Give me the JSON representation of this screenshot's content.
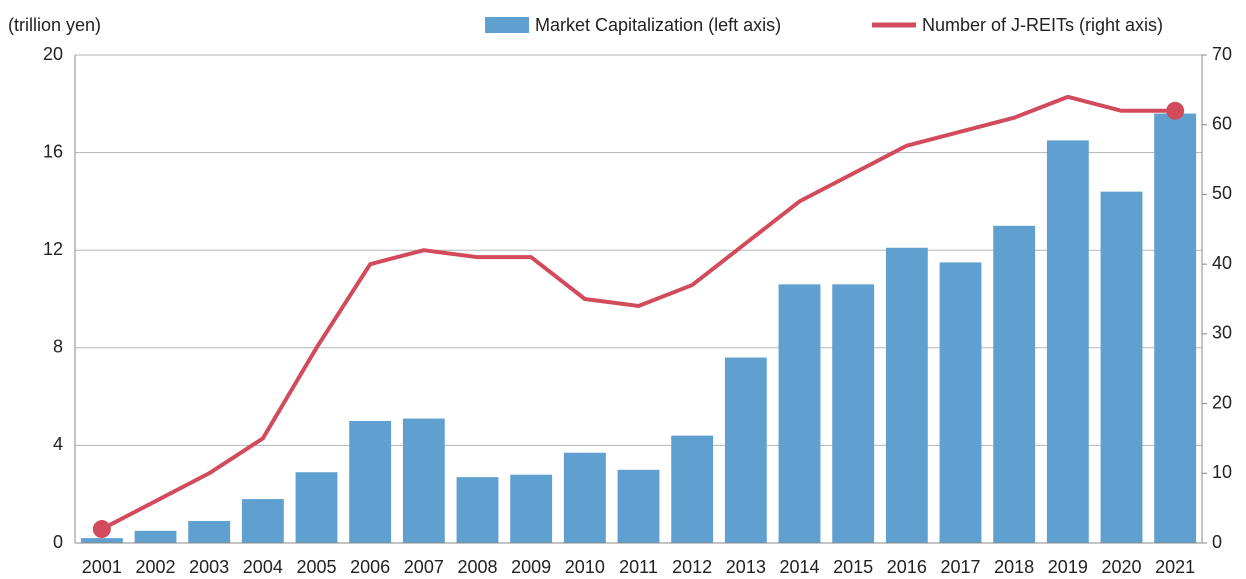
{
  "chart_data": {
    "type": "bar_line",
    "y_axis_label": "(trillion yen)",
    "categories": [
      "2001",
      "2002",
      "2003",
      "2004",
      "2005",
      "2006",
      "2007",
      "2008",
      "2009",
      "2010",
      "2011",
      "2012",
      "2013",
      "2014",
      "2015",
      "2016",
      "2017",
      "2018",
      "2019",
      "2020",
      "2021"
    ],
    "series": [
      {
        "name": "Market Capitalization (left axis)",
        "type": "bar",
        "color": "#5fa0d0",
        "values": [
          0.2,
          0.5,
          0.9,
          1.8,
          2.9,
          5.0,
          5.1,
          2.7,
          2.8,
          3.7,
          3.0,
          4.4,
          7.6,
          10.6,
          10.6,
          12.1,
          11.5,
          13.0,
          16.5,
          14.4,
          17.6
        ]
      },
      {
        "name": "Number of J-REITs (right axis)",
        "type": "line",
        "axis": "y2",
        "color": "#d24b5c",
        "values": [
          2,
          6,
          10,
          15,
          28,
          40,
          42,
          41,
          41,
          35,
          34,
          37,
          43,
          49,
          53,
          57,
          59,
          61,
          64,
          62,
          62
        ]
      }
    ],
    "ylim": [
      0,
      20
    ],
    "yticks": [
      0,
      4,
      8,
      12,
      16,
      20
    ],
    "y2lim": [
      0,
      70
    ],
    "y2ticks": [
      0,
      10,
      20,
      30,
      40,
      50,
      60,
      70
    ],
    "grid": true,
    "legend": "top"
  }
}
